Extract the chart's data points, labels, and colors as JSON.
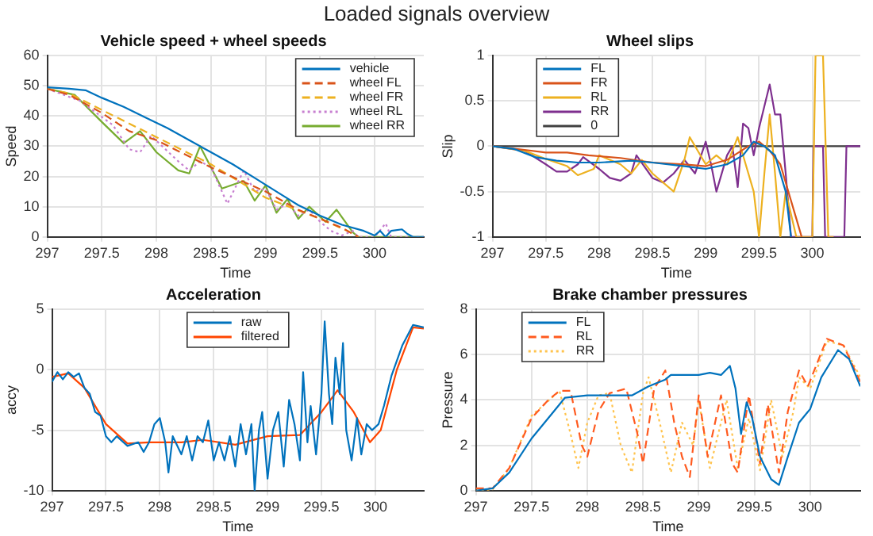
{
  "chart_data": [
    {
      "type": "line",
      "title": "Vehicle speed + wheel speeds",
      "xlabel": "Time",
      "ylabel": "Speed",
      "xlim": [
        297,
        300.45
      ],
      "xticks": [
        297,
        297.5,
        298,
        298.5,
        299,
        299.5,
        300
      ],
      "ylim": [
        0,
        60
      ],
      "yticks": [
        0,
        10,
        20,
        30,
        40,
        50,
        60
      ],
      "grid": true,
      "legend": "top right",
      "annotations": [
        "Loaded signals overview"
      ],
      "series": [
        {
          "name": "vehicle",
          "color": "#0072bd",
          "line_style": "solid",
          "x": [
            297,
            297.2,
            297.35,
            297.5,
            297.7,
            297.9,
            298.1,
            298.3,
            298.5,
            298.7,
            298.9,
            299.1,
            299.3,
            299.5,
            299.7,
            299.9,
            300,
            300.05,
            300.1,
            300.15,
            300.25,
            300.3,
            300.35,
            300.45
          ],
          "values": [
            49.5,
            49,
            48.5,
            46,
            43,
            39.5,
            36,
            32,
            28,
            24,
            19.5,
            15,
            10.5,
            7,
            4,
            2,
            0.5,
            2,
            0,
            2,
            2.5,
            1,
            0,
            0
          ]
        },
        {
          "name": "wheel FL",
          "color": "#d95319",
          "line_style": "dashed",
          "x": [
            297,
            297.2,
            297.5,
            297.75,
            298,
            298.5,
            299,
            299.3,
            299.5,
            299.7,
            299.85
          ],
          "values": [
            49,
            47,
            41,
            35,
            32,
            23,
            15,
            9,
            6,
            3,
            0
          ]
        },
        {
          "name": "wheel FR",
          "color": "#edb120",
          "line_style": "dashed",
          "x": [
            297,
            297.2,
            297.5,
            298,
            298.5,
            299,
            299.5,
            299.75,
            299.85
          ],
          "values": [
            49,
            47.5,
            42,
            33,
            24,
            13,
            6,
            2,
            0
          ]
        },
        {
          "name": "wheel RL",
          "color": "#c77fd0",
          "line_style": "dotted",
          "x": [
            297,
            297.3,
            297.6,
            297.75,
            297.85,
            297.95,
            298.2,
            298.3,
            298.4,
            298.5,
            298.65,
            298.8,
            298.9,
            299,
            299.1,
            299.2,
            299.3,
            299.4,
            299.5,
            299.6,
            299.7,
            299.8,
            299.85,
            300,
            300.1,
            300.15,
            300.45
          ],
          "values": [
            49,
            45,
            37,
            29,
            28,
            33.5,
            25,
            22,
            25,
            23,
            11,
            22,
            15,
            16,
            9,
            11,
            7,
            9,
            5,
            2,
            0.5,
            2,
            0,
            0,
            4.5,
            0,
            0
          ]
        },
        {
          "name": "wheel RR",
          "color": "#77ac30",
          "line_style": "solid",
          "x": [
            297,
            297.25,
            297.5,
            297.7,
            297.85,
            298,
            298.2,
            298.3,
            298.4,
            298.6,
            298.8,
            298.9,
            299,
            299.1,
            299.2,
            299.3,
            299.4,
            299.55,
            299.65,
            299.8,
            299.85,
            300.45
          ],
          "values": [
            49,
            47,
            38,
            31,
            35,
            28,
            22,
            21,
            30,
            16,
            18.5,
            12,
            17,
            8,
            12.5,
            6,
            10,
            5,
            9,
            1.5,
            0,
            0
          ]
        }
      ]
    },
    {
      "type": "line",
      "title": "Wheel slips",
      "xlabel": "Time",
      "ylabel": "Slip",
      "xlim": [
        297,
        300.45
      ],
      "xticks": [
        297,
        297.5,
        298,
        298.5,
        299,
        299.5,
        300
      ],
      "ylim": [
        -1,
        1
      ],
      "yticks": [
        -1,
        -0.5,
        0,
        0.5,
        1
      ],
      "grid": true,
      "legend": "top left",
      "series": [
        {
          "name": "FL",
          "color": "#0072bd",
          "x": [
            297,
            297.2,
            297.4,
            297.6,
            297.8,
            298,
            298.3,
            298.5,
            298.8,
            299,
            299.2,
            299.35,
            299.45,
            299.55,
            299.65,
            299.75,
            299.8
          ],
          "values": [
            0,
            -0.03,
            -0.12,
            -0.16,
            -0.18,
            -0.18,
            -0.16,
            -0.18,
            -0.22,
            -0.25,
            -0.2,
            -0.1,
            0.05,
            0,
            -0.1,
            -0.5,
            -1
          ]
        },
        {
          "name": "FR",
          "color": "#d95319",
          "x": [
            297,
            297.3,
            297.5,
            297.7,
            297.9,
            298.2,
            298.5,
            298.8,
            299,
            299.2,
            299.4,
            299.5,
            299.6,
            299.7,
            299.8,
            299.85,
            299.9
          ],
          "values": [
            0,
            -0.04,
            -0.07,
            -0.07,
            -0.1,
            -0.13,
            -0.18,
            -0.2,
            -0.22,
            -0.15,
            0,
            0.05,
            -0.05,
            -0.2,
            -0.6,
            -0.8,
            -1
          ]
        },
        {
          "name": "RL",
          "color": "#edb120",
          "x": [
            297,
            297.3,
            297.5,
            297.7,
            297.8,
            297.95,
            298,
            298.2,
            298.3,
            298.4,
            298.5,
            298.7,
            298.8,
            298.85,
            299,
            299.1,
            299.2,
            299.3,
            299.4,
            299.45,
            299.5,
            299.55,
            299.6,
            299.65,
            299.7,
            299.75,
            299.85,
            300,
            300.03,
            300.1,
            300.15,
            300.2
          ],
          "values": [
            0,
            -0.05,
            -0.14,
            -0.22,
            -0.32,
            -0.25,
            -0.1,
            -0.2,
            -0.3,
            -0.15,
            -0.3,
            -0.5,
            -0.15,
            0.1,
            -0.2,
            -0.1,
            -0.2,
            0.1,
            -0.3,
            -0.5,
            -1,
            -0.3,
            0.35,
            -0.3,
            -1,
            -0.5,
            -1,
            -1,
            1,
            1,
            -1,
            -1
          ]
        },
        {
          "name": "RR",
          "color": "#7e2f8e",
          "x": [
            297,
            297.3,
            297.5,
            297.6,
            297.7,
            297.8,
            297.85,
            298,
            298.1,
            298.2,
            298.3,
            298.35,
            298.5,
            298.6,
            298.7,
            298.8,
            298.9,
            299,
            299.05,
            299.1,
            299.2,
            299.25,
            299.3,
            299.35,
            299.4,
            299.45,
            299.5,
            299.6,
            299.65,
            299.7,
            299.75,
            299.8,
            300,
            300.01,
            300.1,
            300.12,
            300.3,
            300.32,
            300.45
          ],
          "values": [
            0,
            -0.05,
            -0.2,
            -0.28,
            -0.28,
            -0.2,
            -0.12,
            -0.25,
            -0.35,
            -0.38,
            -0.3,
            -0.1,
            -0.35,
            -0.4,
            -0.3,
            -0.15,
            -0.3,
            0.05,
            -0.2,
            -0.5,
            -0.1,
            0,
            -0.45,
            0.25,
            0.2,
            -0.1,
            0.2,
            0.68,
            0.35,
            0.35,
            -0.3,
            -1,
            -1,
            0,
            0,
            -1,
            -1,
            0,
            0
          ]
        },
        {
          "name": "0",
          "color": "#404040",
          "x": [
            297,
            300.45
          ],
          "values": [
            0,
            0
          ]
        }
      ]
    },
    {
      "type": "line",
      "title": "Acceleration",
      "xlabel": "Time",
      "ylabel": "accy",
      "xlim": [
        297,
        300.45
      ],
      "xticks": [
        297,
        297.5,
        298,
        298.5,
        299,
        299.5,
        300
      ],
      "ylim": [
        -10,
        5
      ],
      "yticks": [
        -10,
        -5,
        0,
        5
      ],
      "grid": true,
      "legend": "top",
      "series": [
        {
          "name": "raw",
          "color": "#0072bd",
          "x": [
            297,
            297.05,
            297.1,
            297.15,
            297.2,
            297.25,
            297.3,
            297.35,
            297.4,
            297.45,
            297.5,
            297.55,
            297.6,
            297.7,
            297.8,
            297.85,
            297.9,
            297.95,
            298,
            298.05,
            298.08,
            298.12,
            298.2,
            298.25,
            298.3,
            298.35,
            298.4,
            298.45,
            298.5,
            298.55,
            298.6,
            298.65,
            298.7,
            298.75,
            298.8,
            298.85,
            298.88,
            298.92,
            298.95,
            299,
            299.05,
            299.1,
            299.15,
            299.2,
            299.25,
            299.3,
            299.33,
            299.37,
            299.4,
            299.45,
            299.5,
            299.53,
            299.57,
            299.6,
            299.63,
            299.67,
            299.7,
            299.73,
            299.78,
            299.83,
            299.87,
            299.92,
            299.97,
            300.03,
            300.08,
            300.15,
            300.25,
            300.35,
            300.45
          ],
          "values": [
            -1,
            -0.2,
            -0.8,
            -0.2,
            -0.6,
            -0.3,
            -1.5,
            -2,
            -3.5,
            -3.8,
            -5.5,
            -6,
            -5.5,
            -6.3,
            -6,
            -6.8,
            -6,
            -4.5,
            -4,
            -6,
            -8.5,
            -5.5,
            -7,
            -5.5,
            -7.5,
            -5.5,
            -6,
            -4.2,
            -7.5,
            -6,
            -7.5,
            -5.5,
            -8,
            -4.5,
            -7,
            -4.5,
            -10,
            -5,
            -3.5,
            -9,
            -5,
            -3.5,
            -8,
            -2.5,
            -4.5,
            -7.5,
            -0.2,
            -6,
            -3,
            -7,
            -2,
            4,
            -2,
            -4.5,
            1,
            -2,
            2.2,
            -5,
            -7.5,
            -4,
            -7,
            -4.5,
            -5,
            -4.5,
            -3,
            -0.5,
            2,
            3.7,
            3.5
          ]
        },
        {
          "name": "filtered",
          "color": "#ff4500",
          "x": [
            297,
            297.15,
            297.3,
            297.5,
            297.7,
            297.9,
            298.2,
            298.4,
            298.7,
            299,
            299.3,
            299.5,
            299.65,
            299.8,
            299.95,
            300.05,
            300.2,
            300.35,
            300.45
          ],
          "values": [
            -0.6,
            -0.3,
            -1.5,
            -4.5,
            -6.1,
            -6,
            -6,
            -5.8,
            -6.2,
            -5.5,
            -5.4,
            -3.5,
            -1.7,
            -3.5,
            -6,
            -5,
            0,
            3.5,
            3.4
          ]
        }
      ]
    },
    {
      "type": "line",
      "title": "Brake chamber pressures",
      "xlabel": "Time",
      "ylabel": "Pressure",
      "xlim": [
        297,
        300.45
      ],
      "xticks": [
        297,
        297.5,
        298,
        298.5,
        299,
        299.5,
        300
      ],
      "ylim": [
        0,
        8
      ],
      "yticks": [
        0,
        2,
        4,
        6,
        8
      ],
      "grid": true,
      "legend": "top left",
      "series": [
        {
          "name": "FL",
          "color": "#0072bd",
          "line_style": "solid",
          "x": [
            297,
            297.15,
            297.3,
            297.5,
            297.7,
            297.8,
            298,
            298.2,
            298.4,
            298.55,
            298.7,
            298.75,
            299,
            299.1,
            299.2,
            299.28,
            299.33,
            299.38,
            299.43,
            299.48,
            299.55,
            299.65,
            299.72,
            299.8,
            299.9,
            300,
            300.1,
            300.25,
            300.35,
            300.45
          ],
          "values": [
            0,
            0.1,
            0.8,
            2.3,
            3.5,
            4.1,
            4.2,
            4.2,
            4.2,
            4.6,
            4.9,
            5.1,
            5.1,
            5.2,
            5.1,
            5.5,
            4.5,
            2.5,
            3.9,
            3.2,
            1.5,
            0.5,
            0.25,
            1.5,
            3,
            3.6,
            5,
            6.2,
            5.8,
            4.6
          ]
        },
        {
          "name": "RL",
          "color": "#ff5a1f",
          "line_style": "dashed",
          "x": [
            297,
            297.15,
            297.3,
            297.5,
            297.65,
            297.75,
            297.85,
            297.95,
            298,
            298.1,
            298.2,
            298.35,
            298.45,
            298.5,
            298.6,
            298.7,
            298.78,
            298.85,
            298.92,
            299,
            299.08,
            299.2,
            299.3,
            299.35,
            299.45,
            299.55,
            299.62,
            299.72,
            299.8,
            299.9,
            299.98,
            300.15,
            300.3,
            300.45
          ],
          "values": [
            0.1,
            0.1,
            1,
            3.2,
            4,
            4.4,
            4.4,
            2,
            1.5,
            3.5,
            4.3,
            4.5,
            2.5,
            1.2,
            4.5,
            5.3,
            3,
            1.5,
            0.6,
            4.2,
            1.5,
            4.2,
            1.2,
            0.8,
            4.2,
            1.2,
            3.8,
            0.8,
            3.5,
            5.3,
            4.6,
            6.7,
            6.4,
            4.8
          ]
        },
        {
          "name": "RR",
          "color": "#ffc34d",
          "line_style": "dotted",
          "x": [
            297,
            297.15,
            297.3,
            297.5,
            297.75,
            297.85,
            297.92,
            298,
            298.1,
            298.2,
            298.3,
            298.4,
            298.5,
            298.55,
            298.65,
            298.75,
            298.85,
            298.9,
            298.95,
            299,
            299.1,
            299.25,
            299.35,
            299.45,
            299.55,
            299.65,
            299.75,
            299.85,
            299.9,
            300,
            300.15,
            300.3,
            300.45
          ],
          "values": [
            0,
            0.05,
            1,
            3.3,
            4.4,
            2.5,
            1,
            3,
            4.2,
            4.3,
            2,
            0.8,
            4.3,
            5,
            3,
            0.8,
            3,
            2.5,
            2,
            4,
            1,
            4,
            1,
            3.2,
            0.9,
            4,
            1.5,
            3.5,
            5,
            4.5,
            6.6,
            6.4,
            5
          ]
        }
      ]
    }
  ]
}
